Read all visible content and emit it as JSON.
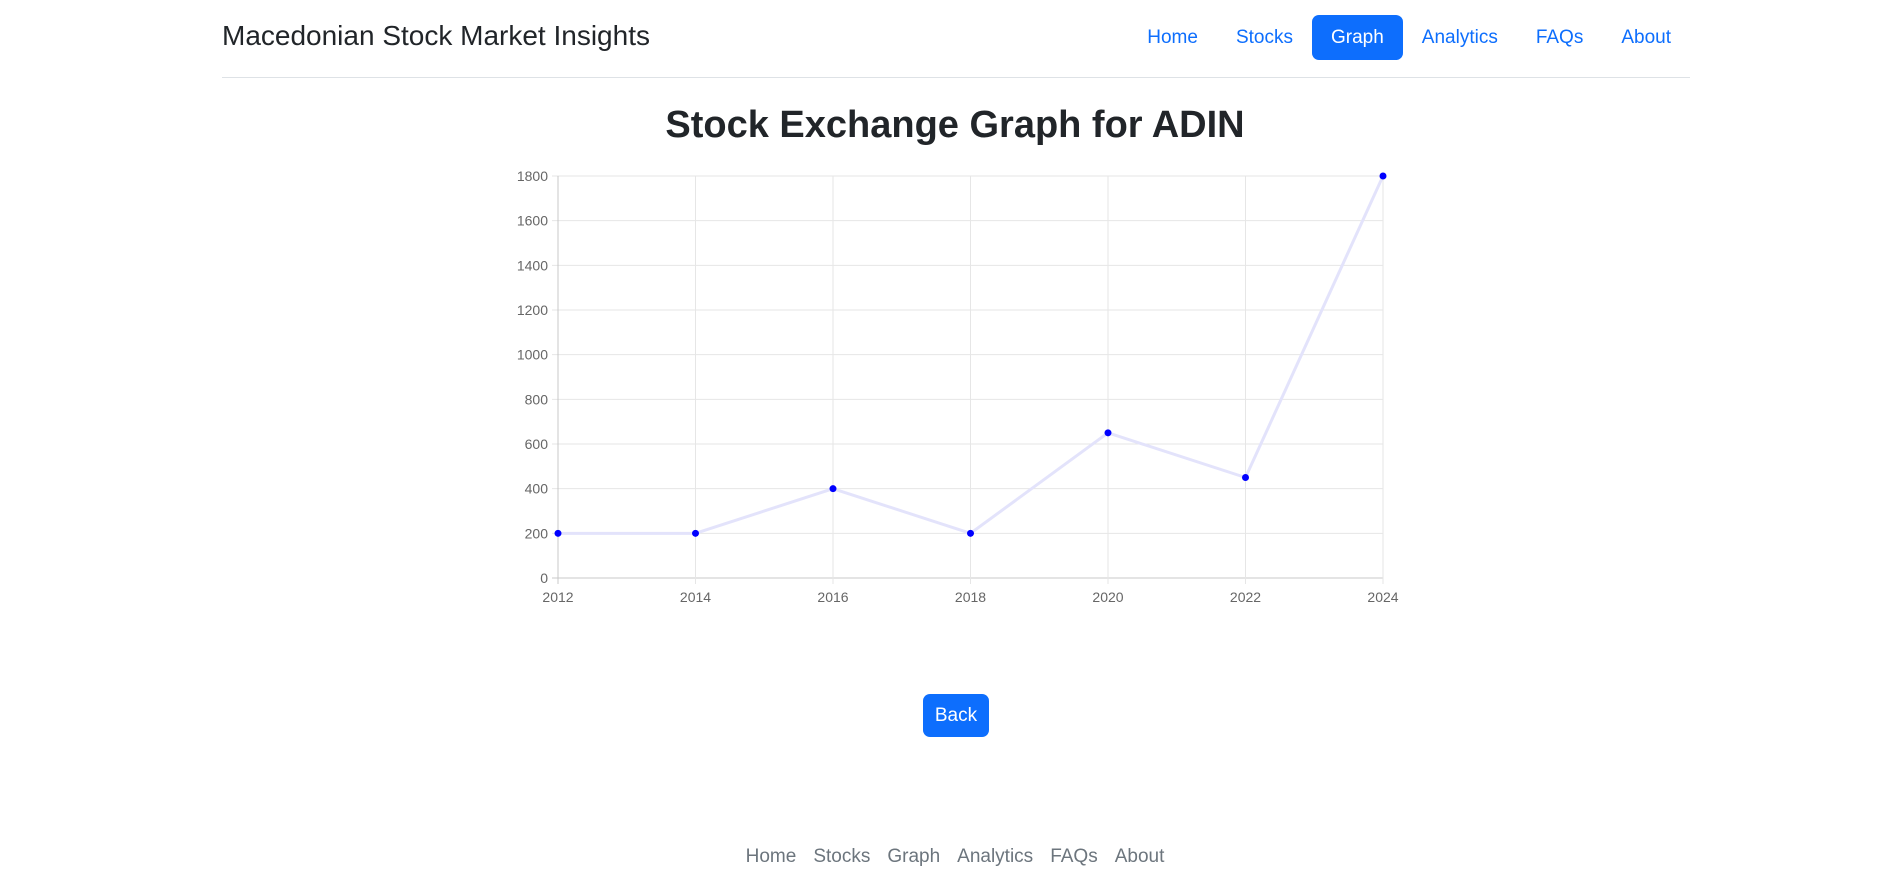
{
  "header": {
    "brand": "Macedonian Stock Market Insights",
    "nav": [
      {
        "label": "Home",
        "active": false
      },
      {
        "label": "Stocks",
        "active": false
      },
      {
        "label": "Graph",
        "active": true
      },
      {
        "label": "Analytics",
        "active": false
      },
      {
        "label": "FAQs",
        "active": false
      },
      {
        "label": "About",
        "active": false
      }
    ]
  },
  "main": {
    "title": "Stock Exchange Graph for ADIN",
    "back_label": "Back"
  },
  "footer": {
    "links": [
      "Home",
      "Stocks",
      "Graph",
      "Analytics",
      "FAQs",
      "About"
    ]
  },
  "colors": {
    "accent": "#0d6efd",
    "point": "#0000ff",
    "line": "#e3e3fb",
    "grid": "#e6e6e6"
  },
  "chart_data": {
    "type": "line",
    "title": "",
    "xlabel": "",
    "ylabel": "",
    "x": [
      2012,
      2014,
      2016,
      2018,
      2020,
      2022,
      2024
    ],
    "series": [
      {
        "values": [
          200,
          200,
          400,
          200,
          650,
          450,
          1800
        ]
      }
    ],
    "xlim": [
      2012,
      2024
    ],
    "ylim": [
      0,
      1800
    ],
    "xticks": [
      2012,
      2014,
      2016,
      2018,
      2020,
      2022,
      2024
    ],
    "yticks": [
      0,
      200,
      400,
      600,
      800,
      1000,
      1200,
      1400,
      1600,
      1800
    ],
    "grid": true,
    "legend": "none"
  }
}
